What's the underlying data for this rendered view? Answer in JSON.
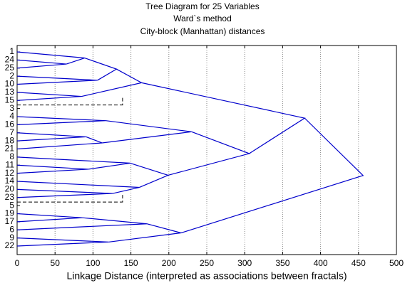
{
  "chart_data": {
    "type": "dendrogram",
    "title": "Tree Diagram for 25  Variables",
    "subtitle": "Ward`s method",
    "subtitle2": "City-block (Manhattan) distances",
    "x_label": "Linkage Distance (interpreted as associations between fractals)",
    "leaves": [
      "1",
      "24",
      "25",
      "2",
      "10",
      "13",
      "15",
      "3",
      "4",
      "16",
      "7",
      "18",
      "21",
      "8",
      "11",
      "12",
      "14",
      "20",
      "23",
      "5",
      "19",
      "17",
      "6",
      "9",
      "22"
    ],
    "merges": [
      {
        "left": 1,
        "right": 2,
        "distance": 65
      },
      {
        "left": 0,
        "right": 25,
        "distance": 89
      },
      {
        "left": 3,
        "right": 4,
        "distance": 106
      },
      {
        "left": 26,
        "right": 27,
        "distance": 131
      },
      {
        "left": 5,
        "right": 6,
        "distance": 85
      },
      {
        "left": 28,
        "right": 29,
        "distance": 164
      },
      {
        "left": 8,
        "right": 9,
        "distance": 117
      },
      {
        "left": 10,
        "right": 11,
        "distance": 91
      },
      {
        "left": 32,
        "right": 12,
        "distance": 112
      },
      {
        "left": 31,
        "right": 33,
        "distance": 230
      },
      {
        "left": 14,
        "right": 15,
        "distance": 94
      },
      {
        "left": 13,
        "right": 35,
        "distance": 149
      },
      {
        "left": 17,
        "right": 18,
        "distance": 126
      },
      {
        "left": 16,
        "right": 37,
        "distance": 161
      },
      {
        "left": 36,
        "right": 38,
        "distance": 199
      },
      {
        "left": 34,
        "right": 39,
        "distance": 306
      },
      {
        "left": 30,
        "right": 40,
        "distance": 379
      },
      {
        "left": 20,
        "right": 21,
        "distance": 86
      },
      {
        "left": 42,
        "right": 22,
        "distance": 171
      },
      {
        "left": 23,
        "right": 24,
        "distance": 121
      },
      {
        "left": 43,
        "right": 44,
        "distance": 216
      },
      {
        "left": 41,
        "right": 45,
        "distance": 456
      }
    ],
    "dashed": {
      "leaves": [
        7,
        19
      ],
      "distance": 139
    },
    "color": "#0000cc",
    "xlim": [
      0,
      500
    ],
    "xticks": [
      0,
      50,
      100,
      150,
      200,
      250,
      300,
      350,
      400,
      450,
      500
    ],
    "grid": true
  }
}
